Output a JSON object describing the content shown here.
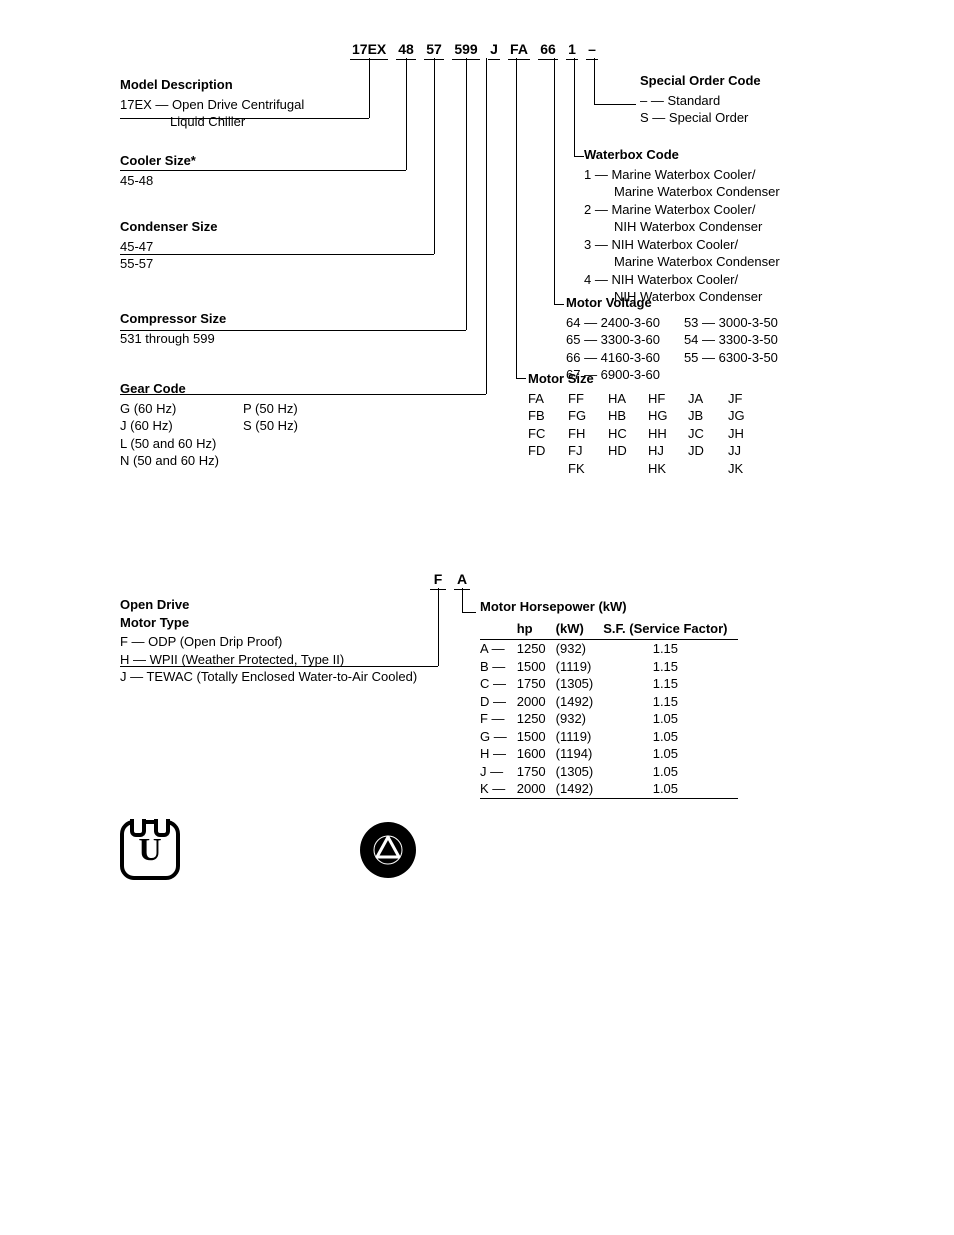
{
  "model_row": {
    "p1": "17EX",
    "p2": "48",
    "p3": "57",
    "p4": "599",
    "p5": "J",
    "p6": "FA",
    "p7": "66",
    "p8": "1",
    "p9": "–"
  },
  "left": {
    "model_desc": {
      "title": "Model Description",
      "l1": "17EX — Open Drive Centrifugal",
      "l2": "Liquid Chiller"
    },
    "cooler_size": {
      "title": "Cooler Size*",
      "l1": "45-48"
    },
    "condenser_size": {
      "title": "Condenser Size",
      "l1": "45-47",
      "l2": "55-57"
    },
    "compressor_size": {
      "title": "Compressor Size",
      "l1": "531 through 599"
    },
    "gear_code": {
      "title": "Gear Code",
      "c1": {
        "l1": "G (60 Hz)",
        "l2": "J (60 Hz)",
        "l3": "L (50 and 60 Hz)",
        "l4": "N (50 and 60 Hz)"
      },
      "c2": {
        "l1": "P (50 Hz)",
        "l2": "S (50 Hz)"
      }
    }
  },
  "right": {
    "special_order": {
      "title": "Special Order Code",
      "l1": "–  — Standard",
      "l2": "S  —  Special Order"
    },
    "waterbox": {
      "title": "Waterbox Code",
      "r1a": "1  —  Marine Waterbox Cooler/",
      "r1b": "Marine Waterbox Condenser",
      "r2a": "2  —  Marine Waterbox Cooler/",
      "r2b": "NIH Waterbox Condenser",
      "r3a": "3  —  NIH Waterbox Cooler/",
      "r3b": "Marine Waterbox Condenser",
      "r4a": "4  —  NIH Waterbox Cooler/",
      "r4b": "NIH Waterbox Condenser"
    },
    "motor_voltage": {
      "title": "Motor Voltage",
      "c1": {
        "l1": "64  —  2400-3-60",
        "l2": "65  —  3300-3-60",
        "l3": "66  —  4160-3-60",
        "l4": "67  —  6900-3-60"
      },
      "c2": {
        "l1": "53  —  3000-3-50",
        "l2": "54  —  3300-3-50",
        "l3": "55  —  6300-3-50"
      }
    },
    "motor_size": {
      "title": "Motor Size",
      "c1": {
        "l1": "FA",
        "l2": "FB",
        "l3": "FC",
        "l4": "FD",
        "l5": ""
      },
      "c2": {
        "l1": "FF",
        "l2": "FG",
        "l3": "FH",
        "l4": "FJ",
        "l5": "FK"
      },
      "c3": {
        "l1": "HA",
        "l2": "HB",
        "l3": "HC",
        "l4": "HD",
        "l5": ""
      },
      "c4": {
        "l1": "HF",
        "l2": "HG",
        "l3": "HH",
        "l4": "HJ",
        "l5": "HK"
      },
      "c5": {
        "l1": "JA",
        "l2": "JB",
        "l3": "JC",
        "l4": "JD",
        "l5": ""
      },
      "c6": {
        "l1": "JF",
        "l2": "JG",
        "l3": "JH",
        "l4": "JJ",
        "l5": "JK"
      }
    }
  },
  "lower_row": {
    "p1": "F",
    "p2": "A"
  },
  "lower": {
    "open_drive": {
      "title1": "Open Drive",
      "title2": "Motor Type",
      "l1": "F  —  ODP (Open Drip Proof)",
      "l2": "H  —  WPII (Weather Protected, Type II)",
      "l3": "J  —  TEWAC (Totally Enclosed Water-to-Air Cooled)"
    },
    "hp": {
      "title": "Motor Horsepower (kW)",
      "h_hp": "hp",
      "h_kw": "(kW)",
      "h_sf": "S.F. (Service Factor)",
      "rows": [
        {
          "c": "A",
          "hp": "1250",
          "kw": "(932)",
          "sf": "1.15"
        },
        {
          "c": "B",
          "hp": "1500",
          "kw": "(1119)",
          "sf": "1.15"
        },
        {
          "c": "C",
          "hp": "1750",
          "kw": "(1305)",
          "sf": "1.15"
        },
        {
          "c": "D",
          "hp": "2000",
          "kw": "(1492)",
          "sf": "1.15"
        },
        {
          "c": "F",
          "hp": "1250",
          "kw": "(932)",
          "sf": "1.05"
        },
        {
          "c": "G",
          "hp": "1500",
          "kw": "(1119)",
          "sf": "1.05"
        },
        {
          "c": "H",
          "hp": "1600",
          "kw": "(1194)",
          "sf": "1.05"
        },
        {
          "c": "J",
          "hp": "1750",
          "kw": "(1305)",
          "sf": "1.05"
        },
        {
          "c": "K",
          "hp": "2000",
          "kw": "(1492)",
          "sf": "1.05"
        }
      ]
    }
  },
  "u_logo": "U"
}
